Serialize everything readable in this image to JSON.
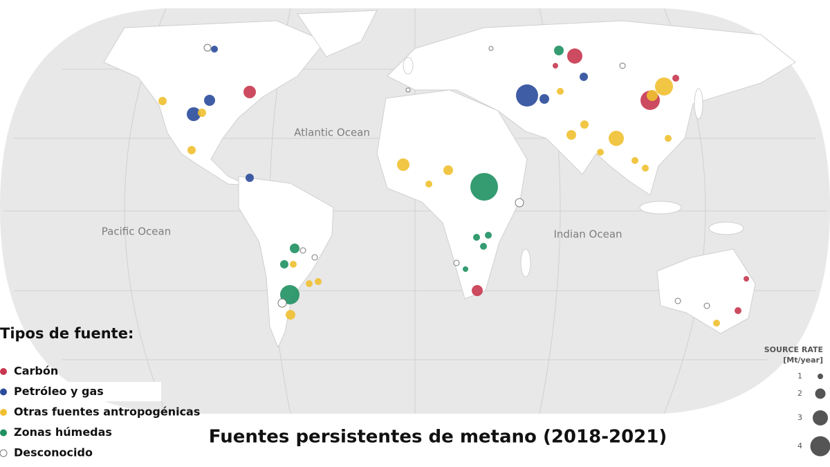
{
  "map": {
    "title": "Fuentes persistentes de metano (2018-2021)",
    "ocean_labels": [
      "Atlantic Ocean",
      "Pacific Ocean",
      "Indian Ocean"
    ]
  },
  "legend": {
    "title": "Tipos de fuente:",
    "items": [
      {
        "label": "Carbón",
        "color": "#c8374f"
      },
      {
        "label": "Petróleo y gas",
        "color": "#2a4b9b"
      },
      {
        "label": "Otras fuentes antropogénicas",
        "color": "#f0c030"
      },
      {
        "label": "Zonas húmedas",
        "color": "#1f9060"
      },
      {
        "label": "Desconocido",
        "color": "#ffffff"
      }
    ]
  },
  "size_legend": {
    "title": "SOURCE RATE",
    "unit": "[Mt/year]",
    "values": [
      1,
      2,
      3,
      4
    ]
  }
}
